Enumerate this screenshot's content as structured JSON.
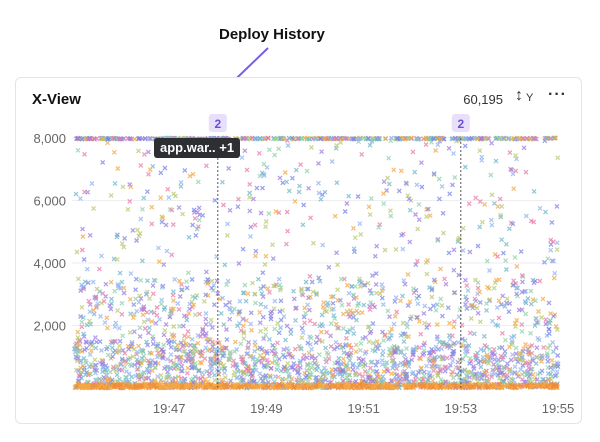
{
  "annotation": {
    "title": "Deploy History"
  },
  "card": {
    "title": "X-View",
    "count": "60,195",
    "y_toggle_label": "Y",
    "menu_icon": "more-icon"
  },
  "tooltip": {
    "text": "app.war.. +1"
  },
  "chart_data": {
    "type": "scatter",
    "x_ticks": [
      "19:47",
      "19:49",
      "19:51",
      "19:53",
      "19:55"
    ],
    "y_ticks": [
      "2,000",
      "4,000",
      "6,000",
      "8,000"
    ],
    "ylim": [
      0,
      8000
    ],
    "xlim": [
      "19:45",
      "19:55"
    ],
    "marker": "x",
    "point_count": 60195,
    "grid": true,
    "deploys": [
      {
        "time": "19:48",
        "count": "2"
      },
      {
        "time": "19:53",
        "count": "2"
      }
    ],
    "colors": [
      "#7b83e8",
      "#8fb4f0",
      "#8ed2a8",
      "#f5a742",
      "#9d7be0",
      "#6fb6c9",
      "#e87ba9",
      "#b8c870"
    ]
  }
}
